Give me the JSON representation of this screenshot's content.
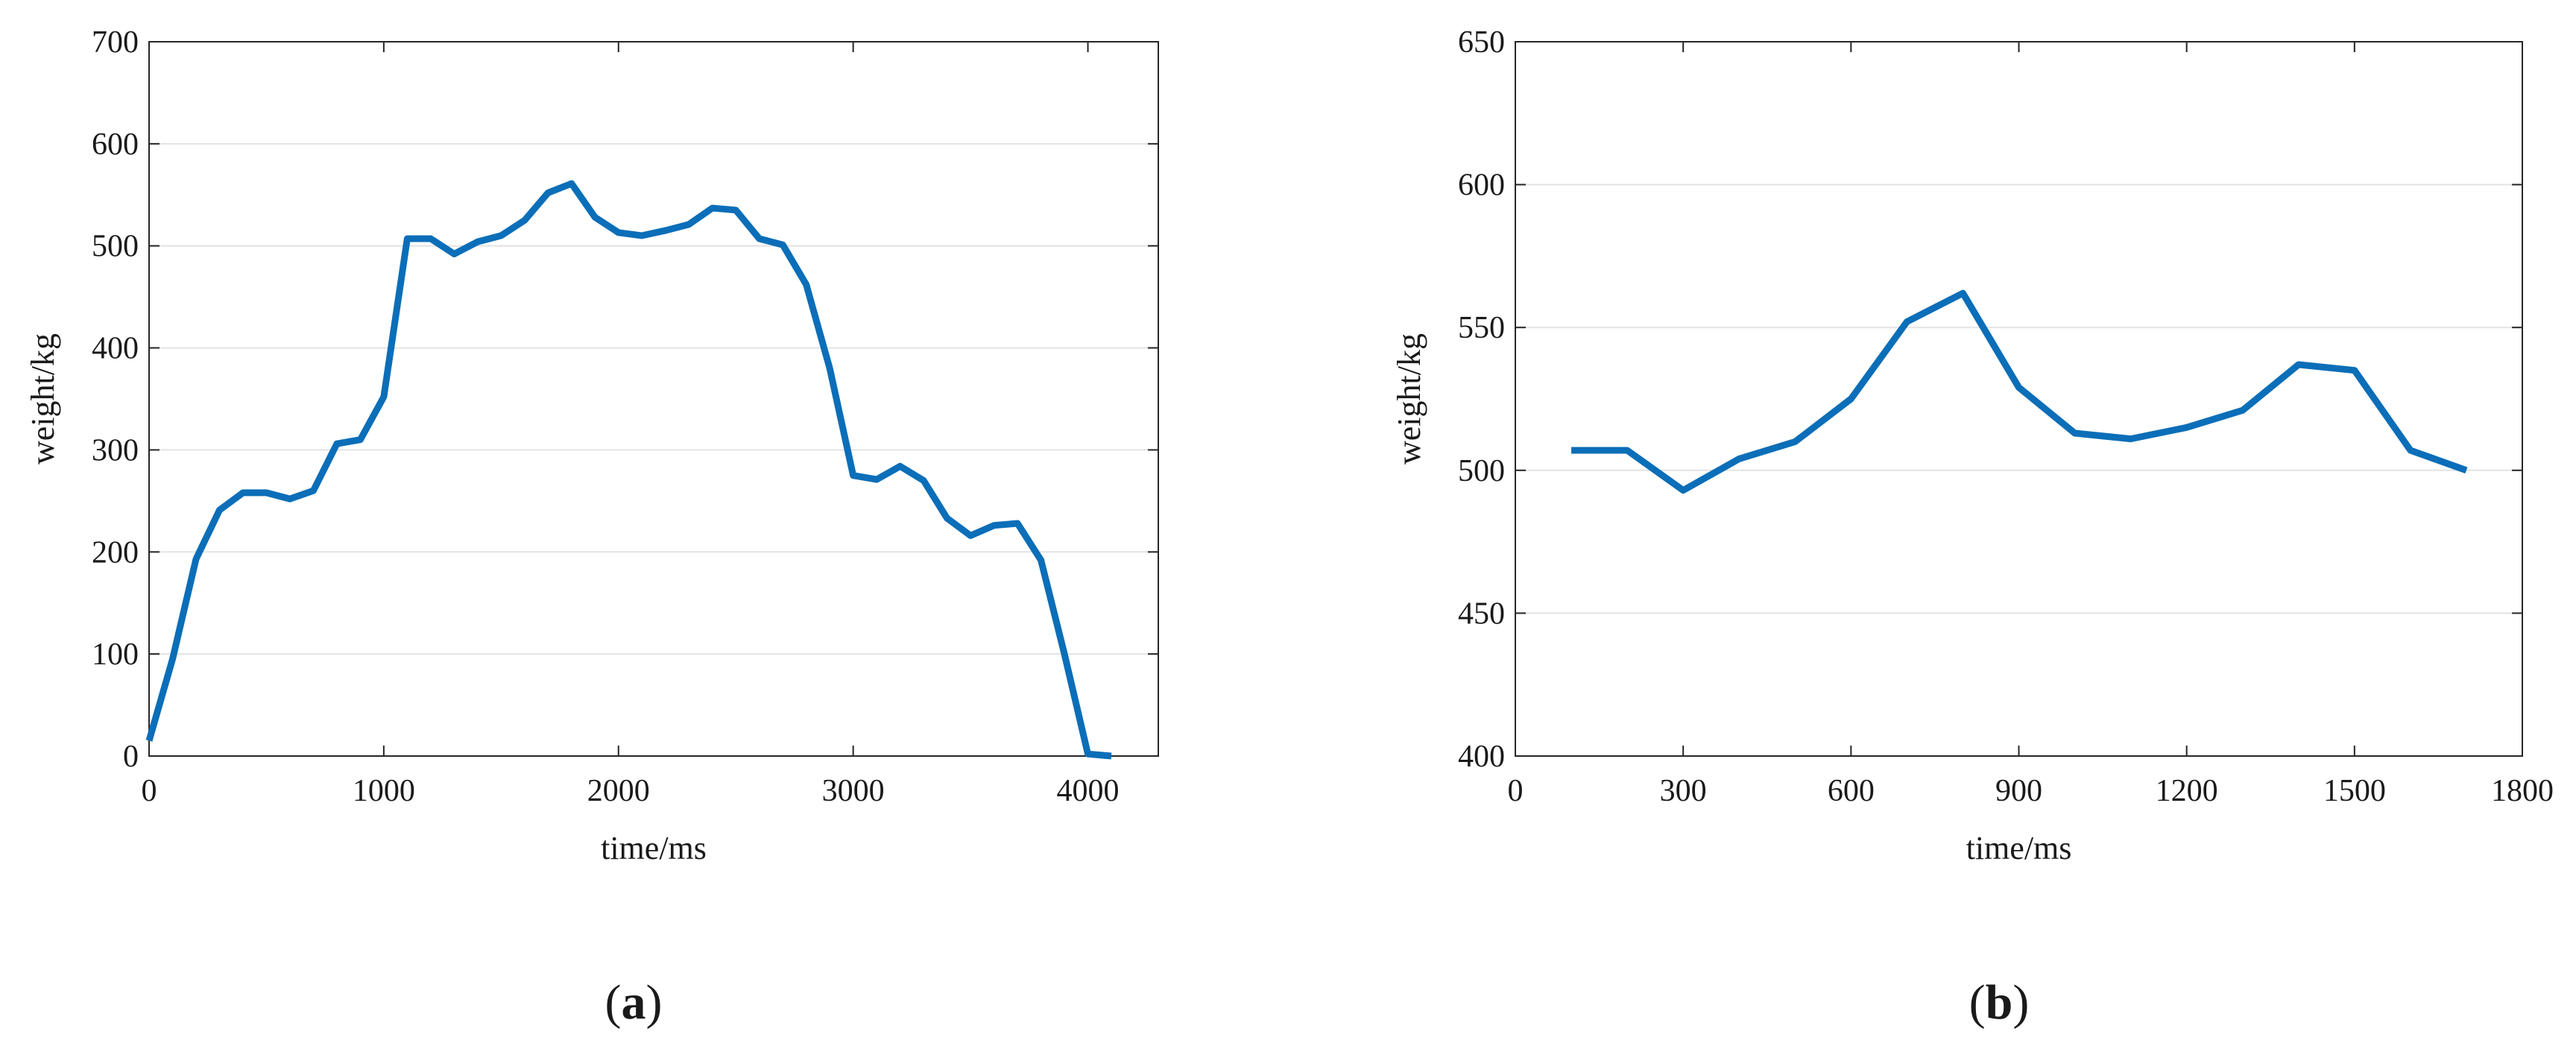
{
  "chart_data": [
    {
      "type": "line",
      "panel_label": "a",
      "xlabel": "time/ms",
      "ylabel": "weight/kg",
      "xlim": [
        0,
        4300
      ],
      "ylim": [
        0,
        700
      ],
      "xticks": [
        0,
        1000,
        2000,
        3000,
        4000
      ],
      "yticks": [
        0,
        100,
        200,
        300,
        400,
        500,
        600,
        700
      ],
      "grid": "horizontal",
      "legend": "none",
      "color": "#0b6eb8",
      "series": [
        {
          "x": [
            0,
            100,
            200,
            300,
            400,
            500,
            600,
            700,
            800,
            900,
            1000,
            1100,
            1200,
            1300,
            1400,
            1500,
            1600,
            1700,
            1800,
            1900,
            2000,
            2100,
            2200,
            2300,
            2400,
            2500,
            2600,
            2700,
            2800,
            2900,
            3000,
            3100,
            3200,
            3300,
            3400,
            3500,
            3600,
            3700,
            3800,
            3900,
            4000,
            4100
          ],
          "y": [
            15,
            95,
            193,
            241,
            258,
            258,
            252,
            260,
            306,
            310,
            352,
            507,
            507,
            492,
            504,
            510,
            525,
            552,
            561,
            528,
            513,
            510,
            515,
            521,
            537,
            535,
            507,
            501,
            462,
            380,
            275,
            271,
            284,
            270,
            233,
            216,
            226,
            228,
            192,
            100,
            2,
            0
          ]
        }
      ]
    },
    {
      "type": "line",
      "panel_label": "b",
      "xlabel": "time/ms",
      "ylabel": "weight/kg",
      "xlim": [
        0,
        1800
      ],
      "ylim": [
        400,
        650
      ],
      "xticks": [
        0,
        300,
        600,
        900,
        1200,
        1500,
        1800
      ],
      "yticks": [
        400,
        450,
        500,
        550,
        600,
        650
      ],
      "grid": "horizontal",
      "legend": "none",
      "color": "#0b6eb8",
      "series": [
        {
          "x": [
            100,
            200,
            300,
            400,
            500,
            600,
            700,
            800,
            900,
            1000,
            1100,
            1200,
            1300,
            1400,
            1500,
            1600,
            1700
          ],
          "y": [
            507,
            507,
            493,
            504,
            510,
            525,
            552,
            562,
            529,
            513,
            511,
            515,
            521,
            537,
            535,
            507,
            500
          ]
        }
      ]
    }
  ]
}
